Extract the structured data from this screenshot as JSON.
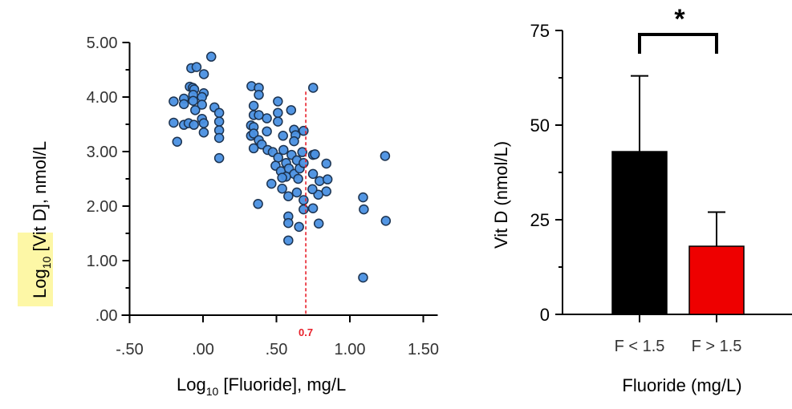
{
  "chart_data": [
    {
      "type": "scatter",
      "xlabel": {
        "main": "Log",
        "sub": "10",
        "rest": " [Fluoride], mg/L"
      },
      "ylabel": {
        "main": "Log",
        "sub": "10",
        "rest": " [Vit D], nmol/L"
      },
      "ylabel_highlight_color": "#fdf7a6",
      "xlim": [
        -0.5,
        1.5
      ],
      "ylim": [
        0,
        5
      ],
      "x_tick_labels": [
        "-.50",
        ".00",
        ".50",
        "1.00",
        "1.50"
      ],
      "x_ticks": [
        -0.5,
        0,
        0.5,
        1.0,
        1.5
      ],
      "y_tick_labels": [
        ".00",
        "1.00",
        "2.00",
        "3.00",
        "4.00",
        "5.00"
      ],
      "y_ticks": [
        0,
        1,
        2,
        3,
        4,
        5
      ],
      "grid": false,
      "marker_color": "#4a90e2",
      "marker_edge_color": "#1c3350",
      "reference_line": {
        "x": 0.7,
        "label": "0.7",
        "color": "#e8202a",
        "style": "dashed"
      },
      "points": [
        [
          0.056,
          4.74
        ],
        [
          -0.08,
          4.53
        ],
        [
          -0.044,
          4.55
        ],
        [
          0.006,
          4.42
        ],
        [
          -0.09,
          4.19
        ],
        [
          -0.07,
          4.17
        ],
        [
          -0.06,
          4.14
        ],
        [
          0.005,
          4.07
        ],
        [
          -0.2,
          3.92
        ],
        [
          -0.13,
          3.97
        ],
        [
          -0.13,
          3.87
        ],
        [
          -0.067,
          4.04
        ],
        [
          -0.067,
          3.93
        ],
        [
          -0.007,
          4.0
        ],
        [
          -0.007,
          3.86
        ],
        [
          -0.053,
          3.76
        ],
        [
          0.078,
          3.81
        ],
        [
          0.11,
          3.71
        ],
        [
          0.11,
          3.55
        ],
        [
          0.11,
          3.39
        ],
        [
          0.11,
          3.25
        ],
        [
          -0.2,
          3.53
        ],
        [
          -0.13,
          3.49
        ],
        [
          -0.098,
          3.52
        ],
        [
          -0.062,
          3.49
        ],
        [
          -0.007,
          3.6
        ],
        [
          0.005,
          3.52
        ],
        [
          0.005,
          3.35
        ],
        [
          -0.176,
          3.18
        ],
        [
          0.11,
          2.88
        ],
        [
          0.33,
          4.2
        ],
        [
          0.38,
          4.17
        ],
        [
          0.38,
          4.04
        ],
        [
          0.51,
          3.92
        ],
        [
          0.51,
          3.71
        ],
        [
          0.51,
          3.55
        ],
        [
          0.6,
          3.76
        ],
        [
          0.345,
          3.84
        ],
        [
          0.345,
          3.67
        ],
        [
          0.38,
          3.67
        ],
        [
          0.435,
          3.61
        ],
        [
          0.327,
          3.48
        ],
        [
          0.345,
          3.45
        ],
        [
          0.327,
          3.29
        ],
        [
          0.345,
          3.33
        ],
        [
          0.38,
          3.21
        ],
        [
          0.435,
          3.37
        ],
        [
          0.345,
          3.06
        ],
        [
          0.4,
          3.13
        ],
        [
          0.44,
          3.03
        ],
        [
          0.545,
          3.29
        ],
        [
          0.62,
          3.4
        ],
        [
          0.685,
          3.38
        ],
        [
          0.63,
          3.3
        ],
        [
          0.62,
          3.19
        ],
        [
          0.75,
          4.17
        ],
        [
          0.475,
          2.99
        ],
        [
          0.512,
          2.89
        ],
        [
          0.548,
          3.03
        ],
        [
          0.566,
          2.79
        ],
        [
          0.603,
          2.94
        ],
        [
          0.639,
          2.84
        ],
        [
          0.494,
          2.74
        ],
        [
          0.53,
          2.64
        ],
        [
          0.585,
          2.69
        ],
        [
          0.621,
          2.59
        ],
        [
          0.658,
          2.69
        ],
        [
          0.676,
          2.99
        ],
        [
          0.685,
          2.79
        ],
        [
          0.648,
          2.5
        ],
        [
          0.566,
          2.54
        ],
        [
          0.539,
          2.52
        ],
        [
          0.749,
          2.94
        ],
        [
          0.762,
          2.95
        ],
        [
          0.84,
          2.78
        ],
        [
          0.749,
          2.59
        ],
        [
          0.794,
          2.46
        ],
        [
          0.848,
          2.49
        ],
        [
          0.84,
          2.27
        ],
        [
          0.785,
          2.21
        ],
        [
          0.745,
          2.31
        ],
        [
          0.749,
          1.96
        ],
        [
          0.788,
          1.68
        ],
        [
          0.685,
          2.11
        ],
        [
          0.685,
          1.94
        ],
        [
          0.654,
          1.62
        ],
        [
          0.581,
          1.81
        ],
        [
          0.581,
          1.69
        ],
        [
          0.581,
          1.37
        ],
        [
          0.539,
          2.32
        ],
        [
          0.581,
          2.18
        ],
        [
          0.639,
          2.25
        ],
        [
          0.466,
          2.41
        ],
        [
          0.375,
          2.04
        ],
        [
          1.24,
          2.92
        ],
        [
          1.09,
          2.16
        ],
        [
          1.095,
          1.94
        ],
        [
          1.245,
          1.73
        ],
        [
          1.09,
          0.69
        ]
      ]
    },
    {
      "type": "bar",
      "ylabel": "Vit D (nmol/L)",
      "xlabel": "Fluoride (mg/L)",
      "categories": [
        "F < 1.5",
        "F > 1.5"
      ],
      "values": [
        43,
        18
      ],
      "error_upper": [
        63,
        27
      ],
      "colors": [
        "#000000",
        "#ee0000"
      ],
      "ylim": [
        0,
        75
      ],
      "y_ticks": [
        0,
        25,
        50,
        75
      ],
      "y_tick_labels": [
        "0",
        "25",
        "50",
        "75"
      ],
      "grid": false,
      "significance": {
        "label": "*",
        "between": [
          "F < 1.5",
          "F > 1.5"
        ]
      }
    }
  ]
}
